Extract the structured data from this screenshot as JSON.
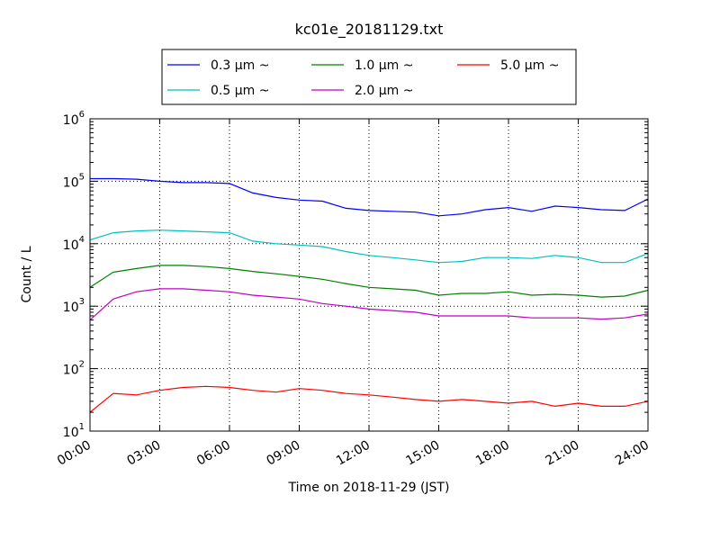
{
  "chart_data": {
    "type": "line",
    "title": "kc01e_20181129.txt",
    "xlabel": "Time on 2018-11-29 (JST)",
    "ylabel": "Count / L",
    "yscale": "log",
    "ylim": [
      10,
      1000000
    ],
    "xlim_hours": [
      0,
      24
    ],
    "x_ticks": [
      "00:00",
      "03:00",
      "06:00",
      "09:00",
      "12:00",
      "15:00",
      "18:00",
      "21:00",
      "24:00"
    ],
    "y_ticks": [
      {
        "base": "10",
        "exp": "1"
      },
      {
        "base": "10",
        "exp": "2"
      },
      {
        "base": "10",
        "exp": "3"
      },
      {
        "base": "10",
        "exp": "4"
      },
      {
        "base": "10",
        "exp": "5"
      },
      {
        "base": "10",
        "exp": "6"
      }
    ],
    "grid": true,
    "legend_position": "top",
    "x_hours": [
      0,
      1,
      2,
      3,
      4,
      5,
      6,
      7,
      8,
      9,
      10,
      11,
      12,
      13,
      14,
      15,
      16,
      17,
      18,
      19,
      20,
      21,
      22,
      23,
      24
    ],
    "series": [
      {
        "name": "0.3 μm ~",
        "color": "#0000ff",
        "values": [
          110000,
          110000,
          108000,
          100000,
          95000,
          95000,
          92000,
          65000,
          55000,
          50000,
          48000,
          37000,
          34000,
          33000,
          32000,
          28000,
          30000,
          35000,
          38000,
          33000,
          40000,
          38000,
          35000,
          34000,
          52000
        ]
      },
      {
        "name": "0.5 μm ~",
        "color": "#00bfbf",
        "values": [
          11500,
          15000,
          16000,
          16500,
          16000,
          15500,
          15000,
          11000,
          10000,
          9500,
          9000,
          7500,
          6500,
          6000,
          5500,
          5000,
          5200,
          6000,
          6000,
          5800,
          6500,
          6000,
          5000,
          5000,
          7000
        ]
      },
      {
        "name": "1.0 μm ~",
        "color": "#008000",
        "values": [
          2000,
          3500,
          4000,
          4500,
          4500,
          4300,
          4000,
          3600,
          3300,
          3000,
          2700,
          2300,
          2000,
          1900,
          1800,
          1500,
          1600,
          1600,
          1700,
          1500,
          1550,
          1500,
          1400,
          1450,
          1800
        ]
      },
      {
        "name": "2.0 μm ~",
        "color": "#bf00bf",
        "values": [
          600,
          1300,
          1700,
          1900,
          1900,
          1800,
          1700,
          1500,
          1400,
          1300,
          1100,
          1000,
          900,
          850,
          800,
          700,
          700,
          700,
          700,
          650,
          650,
          650,
          620,
          650,
          750
        ]
      },
      {
        "name": "5.0 μm ~",
        "color": "#ff0000",
        "values": [
          20,
          40,
          38,
          45,
          50,
          52,
          50,
          45,
          42,
          48,
          45,
          40,
          38,
          35,
          32,
          30,
          32,
          30,
          28,
          30,
          25,
          28,
          25,
          25,
          30
        ]
      }
    ]
  }
}
